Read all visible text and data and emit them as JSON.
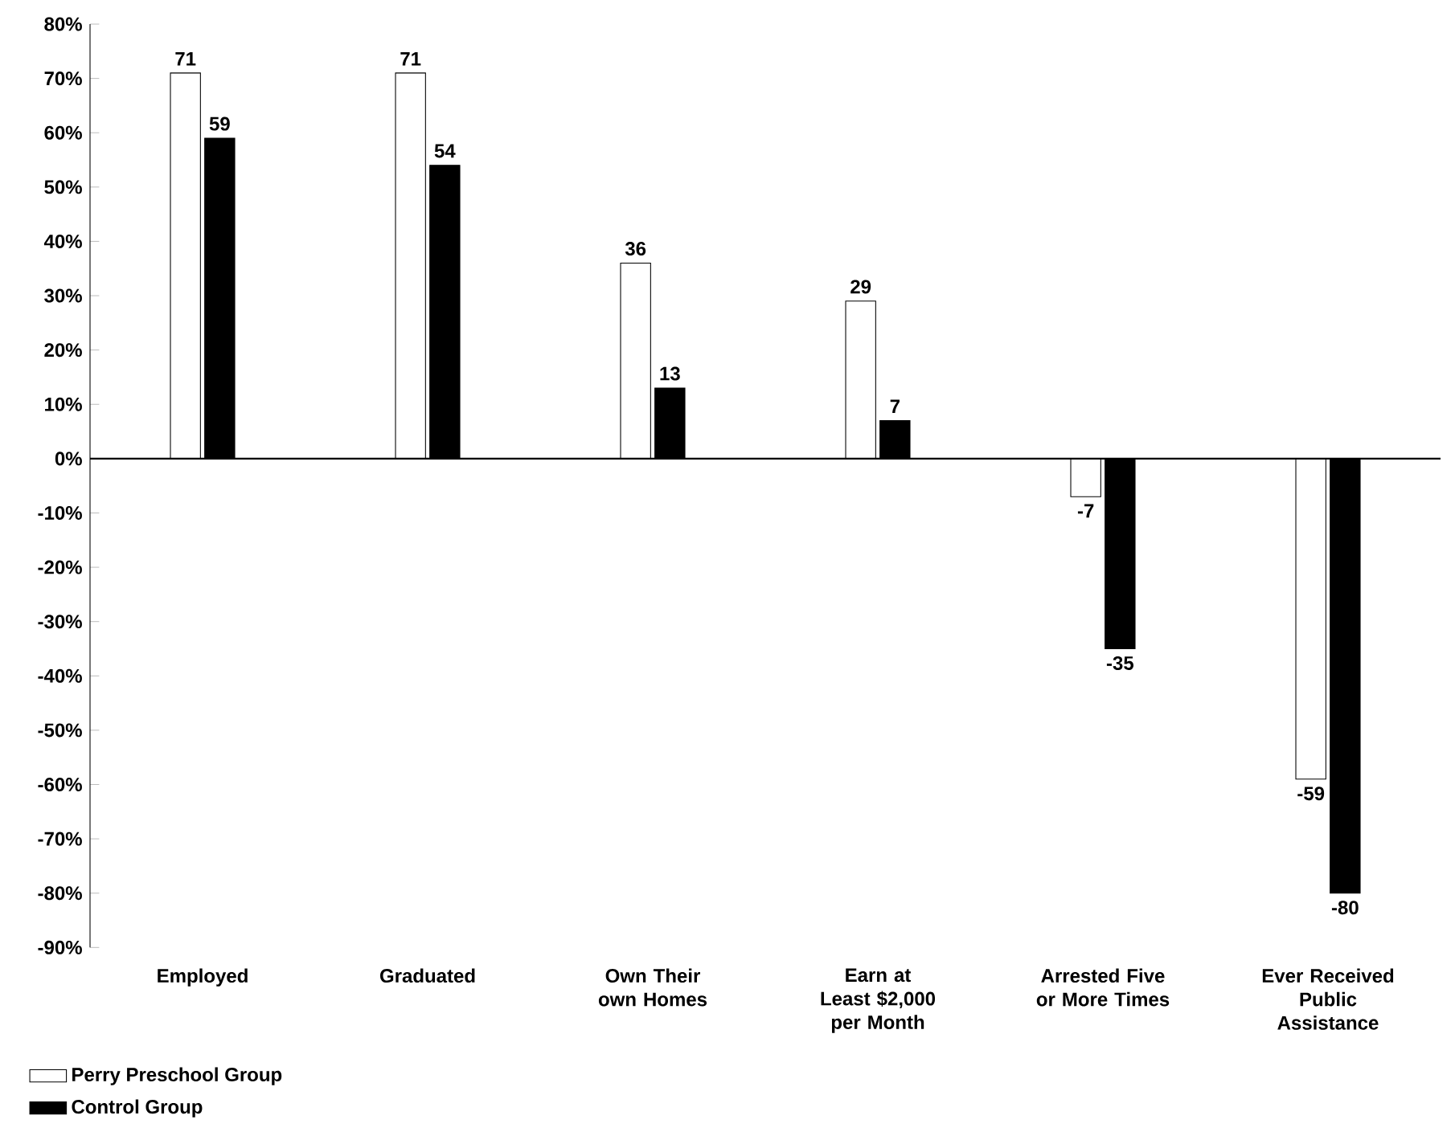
{
  "chart_data": {
    "type": "bar",
    "categories": [
      "Employed",
      "Graduated",
      "Own Their own Homes",
      "Earn at Least $2,000 per Month",
      "Arrested Five or More Times",
      "Ever Received Public Assistance"
    ],
    "series": [
      {
        "name": "Perry Preschool Group",
        "color": "#ffffff",
        "values": [
          71,
          71,
          36,
          29,
          -7,
          -59
        ]
      },
      {
        "name": "Control Group",
        "color": "#000000",
        "values": [
          59,
          54,
          13,
          7,
          -35,
          -80
        ]
      }
    ],
    "ylim": [
      -90,
      80
    ],
    "yticks": [
      {
        "value": 80,
        "label": "80%"
      },
      {
        "value": 70,
        "label": "70%"
      },
      {
        "value": 60,
        "label": "60%"
      },
      {
        "value": 50,
        "label": "50%"
      },
      {
        "value": 40,
        "label": "40%"
      },
      {
        "value": 30,
        "label": "30%"
      },
      {
        "value": 20,
        "label": "20%"
      },
      {
        "value": 10,
        "label": "10%"
      },
      {
        "value": 0,
        "label": "0%"
      },
      {
        "value": -10,
        "label": "-10%"
      },
      {
        "value": -20,
        "label": "-20%"
      },
      {
        "value": -30,
        "label": "-30%"
      },
      {
        "value": -40,
        "label": "-40%"
      },
      {
        "value": -50,
        "label": "-50%"
      },
      {
        "value": -60,
        "label": "-60%"
      },
      {
        "value": -70,
        "label": "-70%"
      },
      {
        "value": -80,
        "label": "-80%"
      },
      {
        "value": -90,
        "label": "-90%"
      }
    ],
    "data_labels": true,
    "legend": "bottom left"
  }
}
